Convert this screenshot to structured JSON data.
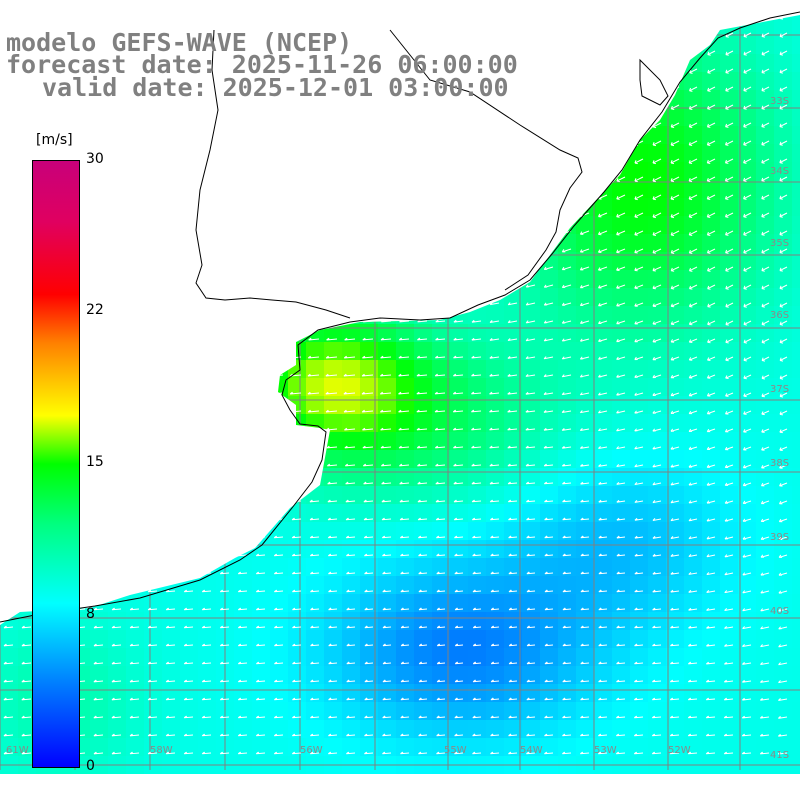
{
  "title": {
    "model": "modelo GEFS-WAVE (NCEP)",
    "forecast": "forecast date: 2025-11-26 06:00:00",
    "valid": "valid date: 2025-12-01 03:00:00"
  },
  "colorbar": {
    "unit": "[m/s]",
    "ticks": [
      "30",
      "22",
      "15",
      "8",
      "0"
    ],
    "tick_values": [
      30,
      22,
      15,
      8,
      0
    ],
    "min": 0,
    "max": 30,
    "colors": [
      "#0000ff",
      "#0080ff",
      "#00ffff",
      "#00ff80",
      "#00ff00",
      "#ffff00",
      "#ffc000",
      "#ff8000",
      "#ff0000",
      "#e00060",
      "#c8007a"
    ]
  },
  "latitude_labels": [
    "33S",
    "34S",
    "35S",
    "36S",
    "37S",
    "38S",
    "39S",
    "40S",
    "41S"
  ],
  "longitude_labels": [
    "61W",
    "58W",
    "56W",
    "55W",
    "54W",
    "53W",
    "52W"
  ],
  "wind_field": {
    "variable": "wind speed",
    "dominant_direction": "from east / northeast toward west / southwest",
    "regions": [
      {
        "area": "Rio de la Plata estuary",
        "speed_ms": 14
      },
      {
        "area": "Uruguay coastal shelf",
        "speed_ms": 12
      },
      {
        "area": "Southern Brazil coast",
        "speed_ms": 12
      },
      {
        "area": "open ocean east",
        "speed_ms": 8
      },
      {
        "area": "open ocean south",
        "speed_ms": 4
      }
    ]
  },
  "colors": {
    "land": "#ffffff",
    "grid": "#808080",
    "coastline": "#000000",
    "title_text": "#808080",
    "arrows": "#ffffff"
  }
}
